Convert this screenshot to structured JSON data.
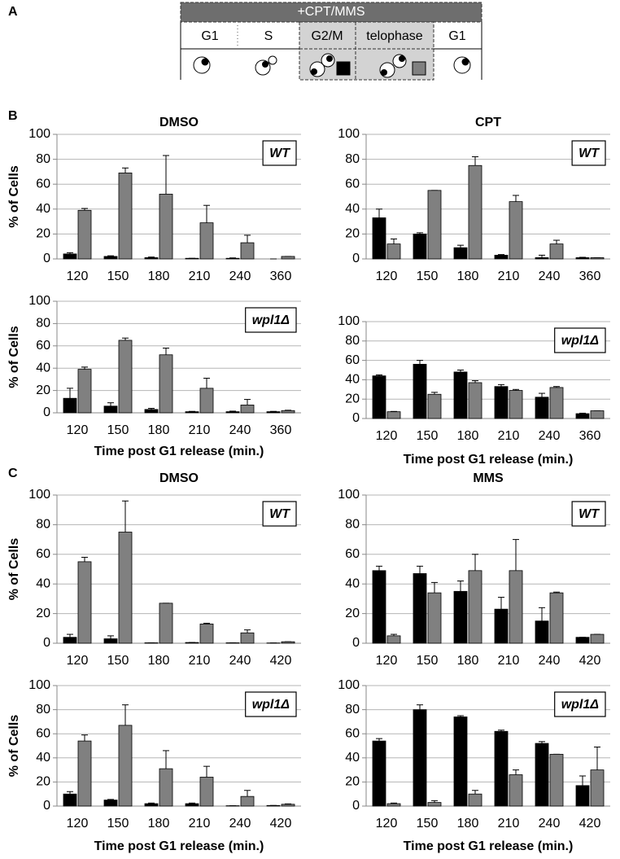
{
  "panel_labels": [
    "A",
    "B",
    "C"
  ],
  "diagram": {
    "header": "+CPT/MMS",
    "phases": [
      "G1",
      "S",
      "G2/M",
      "telophase",
      "G1"
    ]
  },
  "chart_data": [
    {
      "type": "bar",
      "title": "DMSO",
      "ylabel": "% of Cells",
      "label": "WT",
      "categories": [
        "120",
        "150",
        "180",
        "210",
        "240",
        "360"
      ],
      "series": [
        {
          "color": "#000000",
          "values": [
            4,
            2,
            1,
            0.5,
            0.5,
            0
          ],
          "errors": [
            1,
            0.5,
            0.5,
            0,
            0.3,
            0
          ]
        },
        {
          "color": "#808080",
          "values": [
            39,
            69,
            52,
            29,
            13,
            2
          ],
          "errors": [
            1.5,
            4,
            31,
            14,
            6,
            0
          ]
        }
      ],
      "ylim": [
        0,
        100
      ],
      "yticks": [
        0,
        20,
        40,
        60,
        80,
        100
      ],
      "grid": true
    },
    {
      "type": "bar",
      "title": "CPT",
      "label": "WT",
      "categories": [
        "120",
        "150",
        "180",
        "210",
        "240",
        "360"
      ],
      "series": [
        {
          "color": "#000000",
          "values": [
            33,
            20,
            9,
            3,
            1,
            1
          ],
          "errors": [
            7,
            1,
            2,
            0.5,
            2,
            0.3
          ]
        },
        {
          "color": "#808080",
          "values": [
            12,
            55,
            75,
            46,
            12,
            1
          ],
          "errors": [
            4,
            0,
            7,
            5,
            3,
            0
          ]
        }
      ],
      "ylim": [
        0,
        100
      ],
      "yticks": [
        0,
        20,
        40,
        60,
        80,
        100
      ],
      "grid": true
    },
    {
      "type": "bar",
      "ylabel": "% of Cells",
      "xlabel": "Time post G1 release (min.)",
      "label": "wpl1Δ",
      "categories": [
        "120",
        "150",
        "180",
        "210",
        "240",
        "360"
      ],
      "series": [
        {
          "color": "#000000",
          "values": [
            13,
            6,
            3,
            1,
            1,
            1
          ],
          "errors": [
            9,
            3,
            1,
            0.3,
            0.5,
            0.3
          ]
        },
        {
          "color": "#808080",
          "values": [
            39,
            65,
            52,
            22,
            7,
            2
          ],
          "errors": [
            2,
            2,
            6,
            9,
            5,
            0.3
          ]
        }
      ],
      "ylim": [
        0,
        100
      ],
      "yticks": [
        0,
        20,
        40,
        60,
        80,
        100
      ],
      "grid": true
    },
    {
      "type": "bar",
      "xlabel": "Time post G1 release (min.)",
      "label": "wpl1Δ",
      "categories": [
        "120",
        "150",
        "180",
        "210",
        "240",
        "360"
      ],
      "series": [
        {
          "color": "#000000",
          "values": [
            44,
            56,
            48,
            33,
            22,
            5
          ],
          "errors": [
            1,
            4,
            2,
            2,
            4,
            0.5
          ]
        },
        {
          "color": "#808080",
          "values": [
            7,
            25,
            37,
            29,
            32,
            8
          ],
          "errors": [
            0.3,
            2,
            2,
            1,
            1,
            0
          ]
        }
      ],
      "ylim": [
        0,
        100
      ],
      "yticks": [
        0,
        20,
        40,
        60,
        80,
        100
      ],
      "grid": true
    },
    {
      "type": "bar",
      "title": "DMSO",
      "ylabel": "% of Cells",
      "label": "WT",
      "categories": [
        "120",
        "150",
        "180",
        "210",
        "240",
        "420"
      ],
      "series": [
        {
          "color": "#000000",
          "values": [
            4,
            3,
            0.3,
            0.5,
            0.3,
            0.2
          ],
          "errors": [
            2,
            2,
            0,
            0,
            0,
            0
          ]
        },
        {
          "color": "#808080",
          "values": [
            55,
            75,
            27,
            13,
            7,
            1
          ],
          "errors": [
            3,
            21,
            0,
            0.5,
            2,
            0
          ]
        }
      ],
      "ylim": [
        0,
        100
      ],
      "yticks": [
        0,
        20,
        40,
        60,
        80,
        100
      ],
      "grid": true
    },
    {
      "type": "bar",
      "title": "MMS",
      "label": "WT",
      "categories": [
        "120",
        "150",
        "180",
        "210",
        "240",
        "420"
      ],
      "series": [
        {
          "color": "#000000",
          "values": [
            49,
            47,
            35,
            23,
            15,
            4
          ],
          "errors": [
            3,
            5,
            7,
            8,
            9,
            0
          ]
        },
        {
          "color": "#808080",
          "values": [
            5,
            34,
            49,
            49,
            34,
            6
          ],
          "errors": [
            1,
            7,
            11,
            21,
            0.5,
            0
          ]
        }
      ],
      "ylim": [
        0,
        100
      ],
      "yticks": [
        0,
        20,
        40,
        60,
        80,
        100
      ],
      "grid": true
    },
    {
      "type": "bar",
      "ylabel": "% of Cells",
      "xlabel": "Time post G1 release (min.)",
      "label": "wpl1Δ",
      "categories": [
        "120",
        "150",
        "180",
        "210",
        "240",
        "420"
      ],
      "series": [
        {
          "color": "#000000",
          "values": [
            10,
            5,
            2,
            2,
            0.3,
            0.5
          ],
          "errors": [
            2,
            0.5,
            0.5,
            0.5,
            0,
            0
          ]
        },
        {
          "color": "#808080",
          "values": [
            54,
            67,
            31,
            24,
            8,
            1.5
          ],
          "errors": [
            5,
            17,
            15,
            9,
            5,
            0.3
          ]
        }
      ],
      "ylim": [
        0,
        100
      ],
      "yticks": [
        0,
        20,
        40,
        60,
        80,
        100
      ],
      "grid": true
    },
    {
      "type": "bar",
      "xlabel": "Time post G1 release (min.)",
      "label": "wpl1Δ",
      "categories": [
        "120",
        "150",
        "180",
        "210",
        "240",
        "420"
      ],
      "series": [
        {
          "color": "#000000",
          "values": [
            54,
            80,
            74,
            62,
            52,
            17
          ],
          "errors": [
            2,
            4,
            1,
            1,
            1.5,
            8
          ]
        },
        {
          "color": "#808080",
          "values": [
            2,
            3,
            10,
            26,
            43,
            30
          ],
          "errors": [
            0.5,
            1.5,
            3,
            4,
            0,
            19
          ]
        }
      ],
      "ylim": [
        0,
        100
      ],
      "yticks": [
        0,
        20,
        40,
        60,
        80,
        100
      ],
      "grid": true
    }
  ]
}
